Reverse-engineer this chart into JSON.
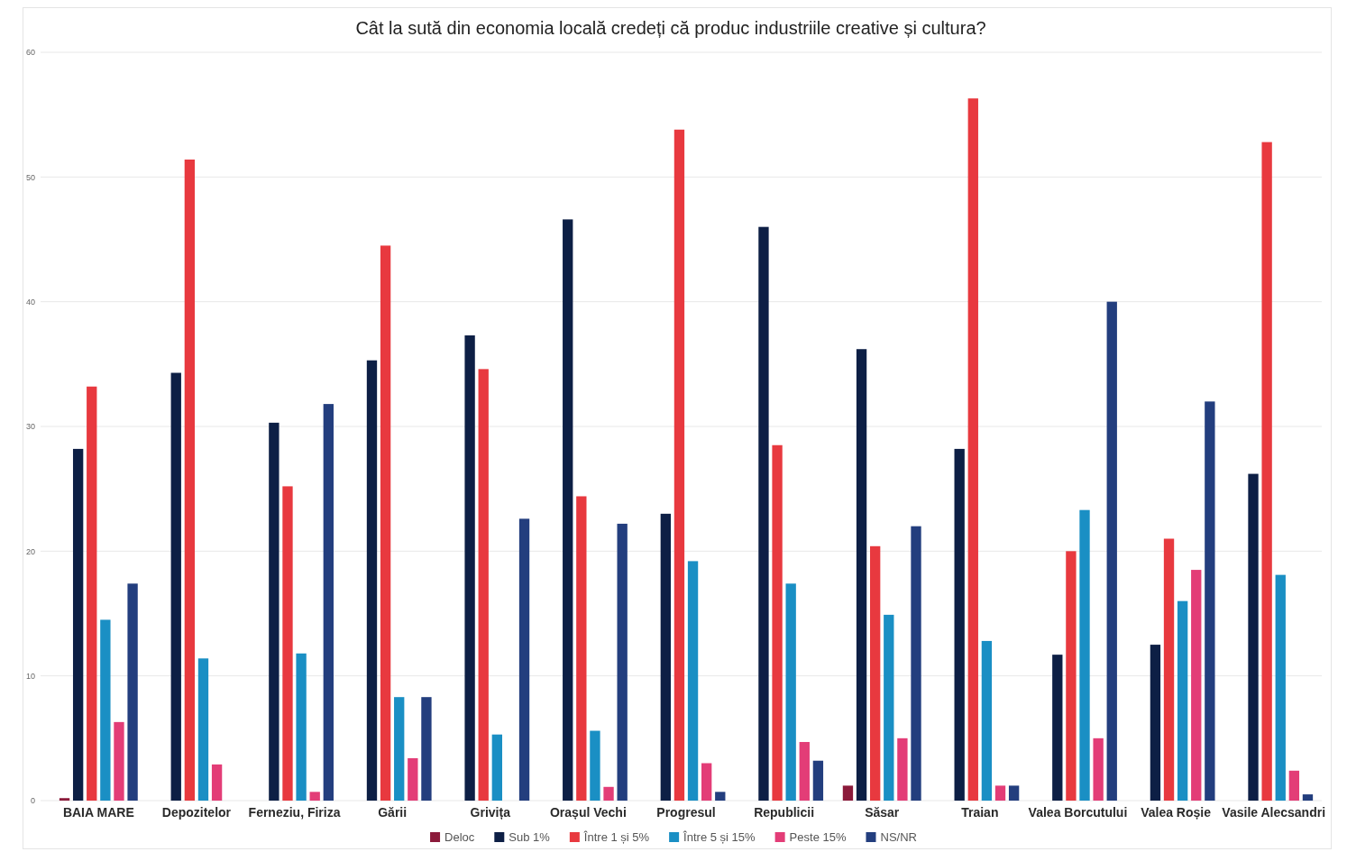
{
  "chart_data": {
    "type": "bar",
    "title": "Cât la sută din economia locală credeți că produc industriile creative și cultura?",
    "categories": [
      "BAIA MARE",
      "Depozitelor",
      "Ferneziu, Firiza",
      "Gării",
      "Grivița",
      "Orașul Vechi",
      "Progresul",
      "Republicii",
      "Săsar",
      "Traian",
      "Valea Borcutului",
      "Valea Roșie",
      "Vasile Alecsandri"
    ],
    "series": [
      {
        "name": "Deloc",
        "color": "#8b1a3a",
        "values": [
          0.2,
          null,
          null,
          null,
          null,
          null,
          null,
          null,
          1.2,
          null,
          null,
          null,
          null
        ]
      },
      {
        "name": "Sub 1%",
        "color": "#0d1f45",
        "values": [
          28.2,
          34.3,
          30.3,
          35.3,
          37.3,
          46.6,
          23.0,
          46.0,
          36.2,
          28.2,
          11.7,
          12.5,
          26.2
        ]
      },
      {
        "name": "Între 1 și 5%",
        "color": "#e8393f",
        "values": [
          33.2,
          51.4,
          25.2,
          44.5,
          34.6,
          24.4,
          53.8,
          28.5,
          20.4,
          56.3,
          20.0,
          21.0,
          52.8
        ]
      },
      {
        "name": "Între 5 și 15%",
        "color": "#1a8fc4",
        "values": [
          14.5,
          11.4,
          11.8,
          8.3,
          5.3,
          5.6,
          19.2,
          17.4,
          14.9,
          12.8,
          23.3,
          16.0,
          18.1
        ]
      },
      {
        "name": "Peste 15%",
        "color": "#e33d77",
        "values": [
          6.3,
          2.9,
          0.7,
          3.4,
          null,
          1.1,
          3.0,
          4.7,
          5.0,
          1.2,
          5.0,
          18.5,
          2.4
        ]
      },
      {
        "name": "NS/NR",
        "color": "#233e7e",
        "values": [
          17.4,
          null,
          31.8,
          8.3,
          22.6,
          22.2,
          0.7,
          3.2,
          22.0,
          1.2,
          40.0,
          32.0,
          0.5
        ]
      }
    ],
    "ylim": [
      0,
      60
    ],
    "yticks": [
      0,
      10,
      20,
      30,
      40,
      50,
      60
    ],
    "grid": "y",
    "legend": "bottom"
  }
}
